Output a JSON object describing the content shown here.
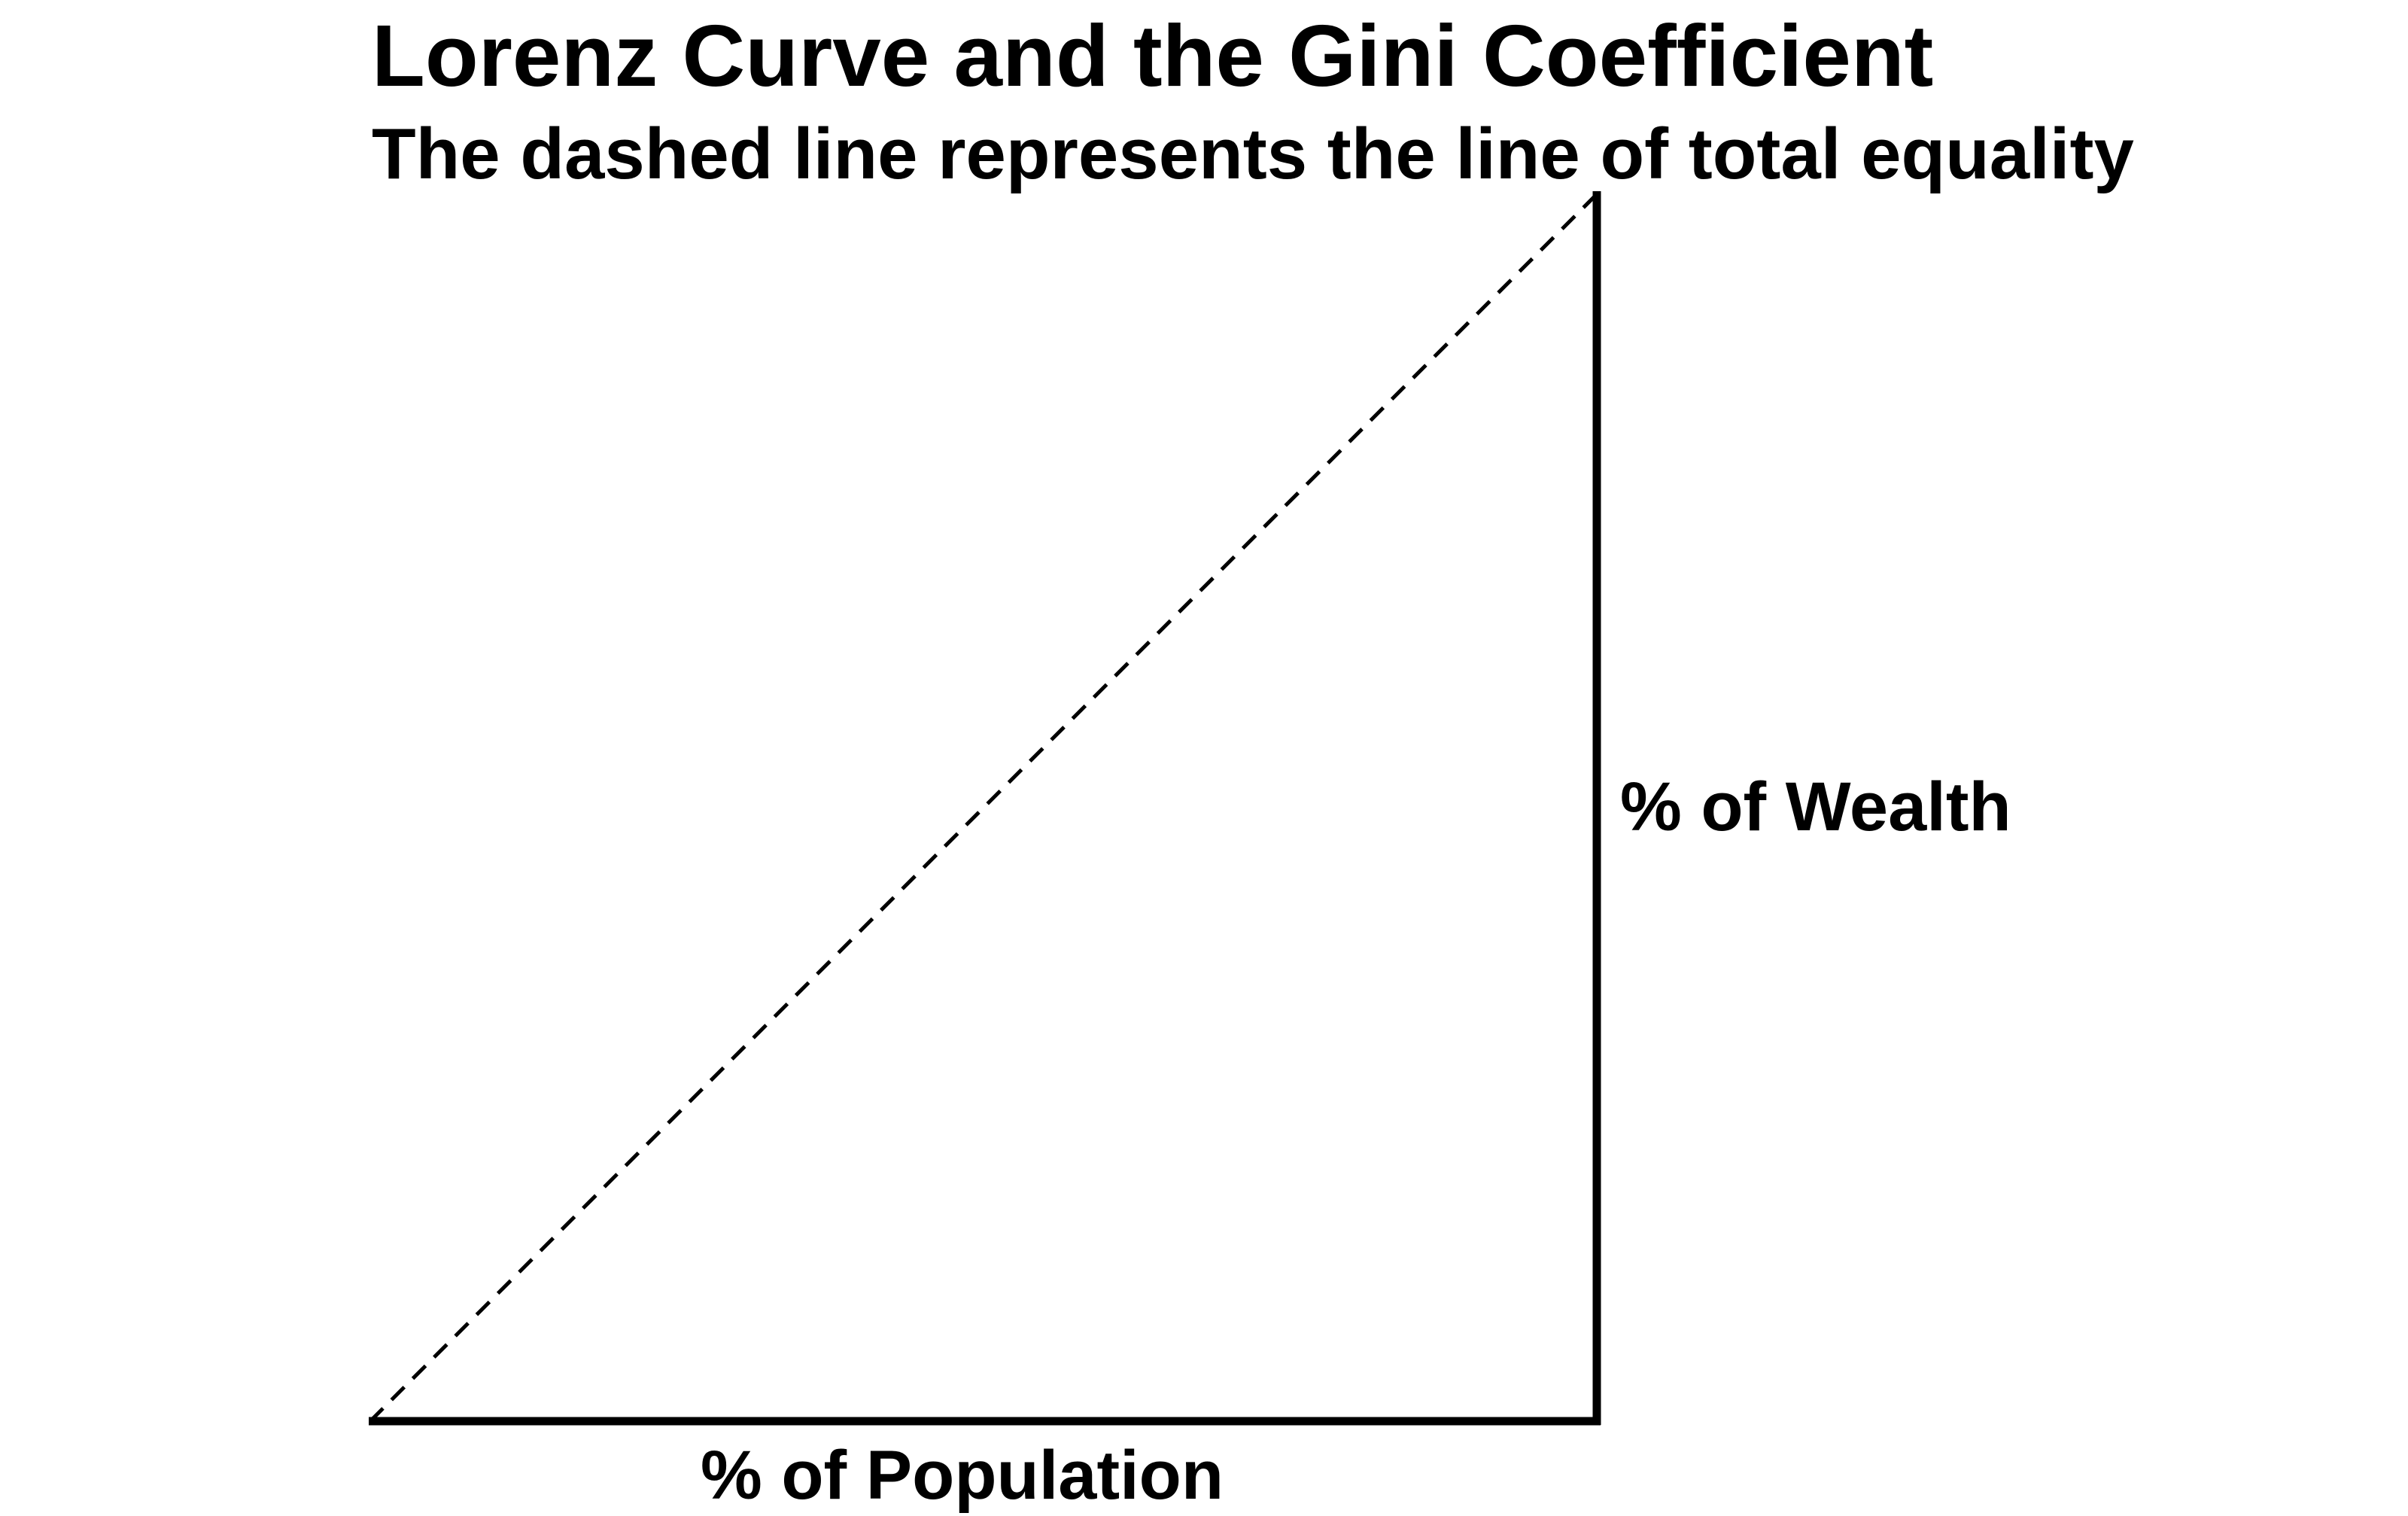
{
  "title": "Lorenz Curve and the Gini Coefficient",
  "subtitle": "The dashed line represents the line of total equality",
  "axes": {
    "y_label": "% of Wealth",
    "x_label": "% of Population"
  },
  "colors": {
    "axis_line": "#000000",
    "equality_line": "#000000",
    "background": "#ffffff"
  },
  "equality_line_style": "dashed"
}
